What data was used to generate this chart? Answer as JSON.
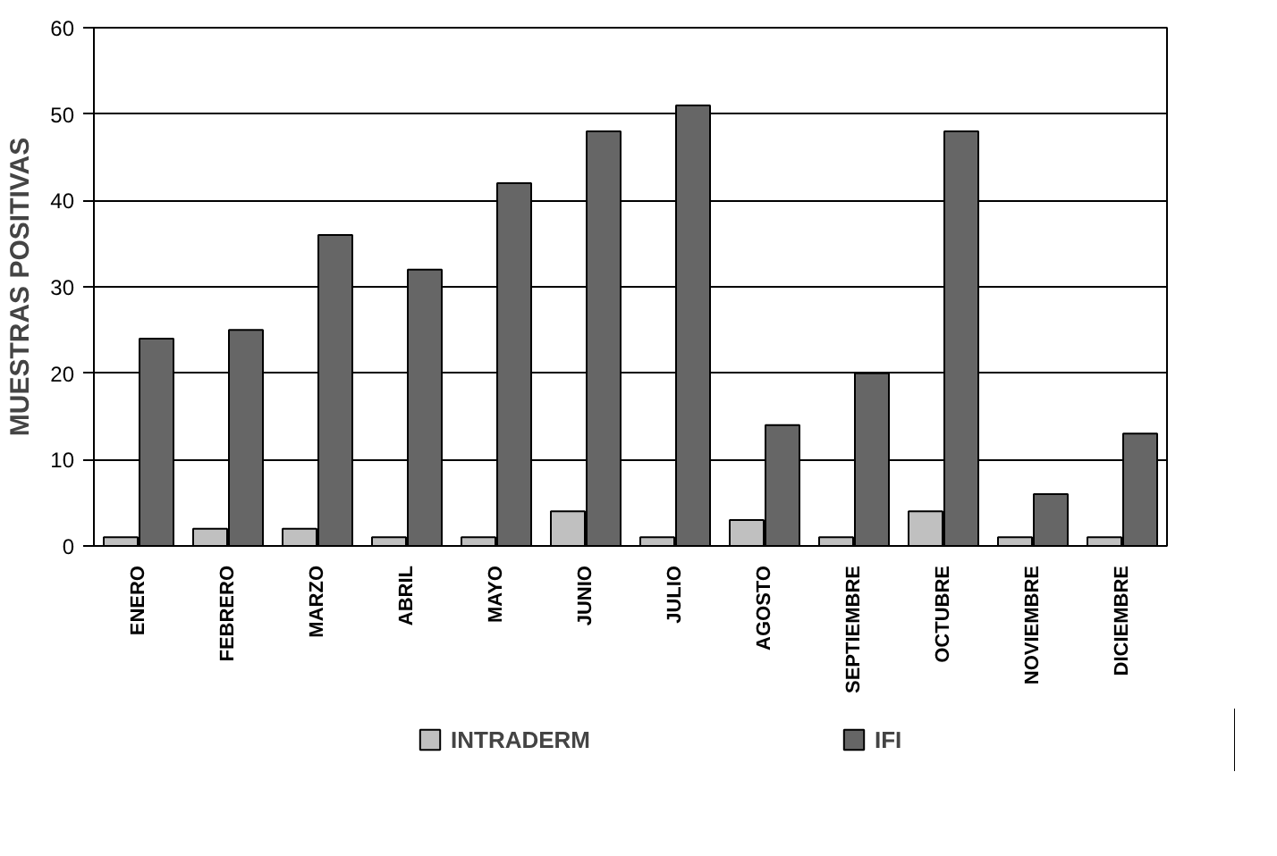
{
  "chart_data": {
    "type": "bar",
    "ylabel": "MUESTRAS POSITIVAS",
    "categories": [
      "ENERO",
      "FEBRERO",
      "MARZO",
      "ABRIL",
      "MAYO",
      "JUNIO",
      "JULIO",
      "AGOSTO",
      "SEPTIEMBRE",
      "OCTUBRE",
      "NOVIEMBRE",
      "DICIEMBRE"
    ],
    "series": [
      {
        "name": "INTRADERM",
        "color": "#c0c0c0",
        "values": [
          1,
          2,
          2,
          1,
          1,
          4,
          1,
          3,
          1,
          4,
          1,
          1
        ]
      },
      {
        "name": "IFI",
        "color": "#666666",
        "values": [
          24,
          25,
          36,
          32,
          42,
          48,
          51,
          14,
          20,
          48,
          6,
          13
        ]
      }
    ],
    "ylim": [
      0,
      60
    ],
    "yticks": [
      0,
      10,
      20,
      30,
      40,
      50,
      60
    ],
    "grid": "y",
    "legend": "bottom"
  }
}
